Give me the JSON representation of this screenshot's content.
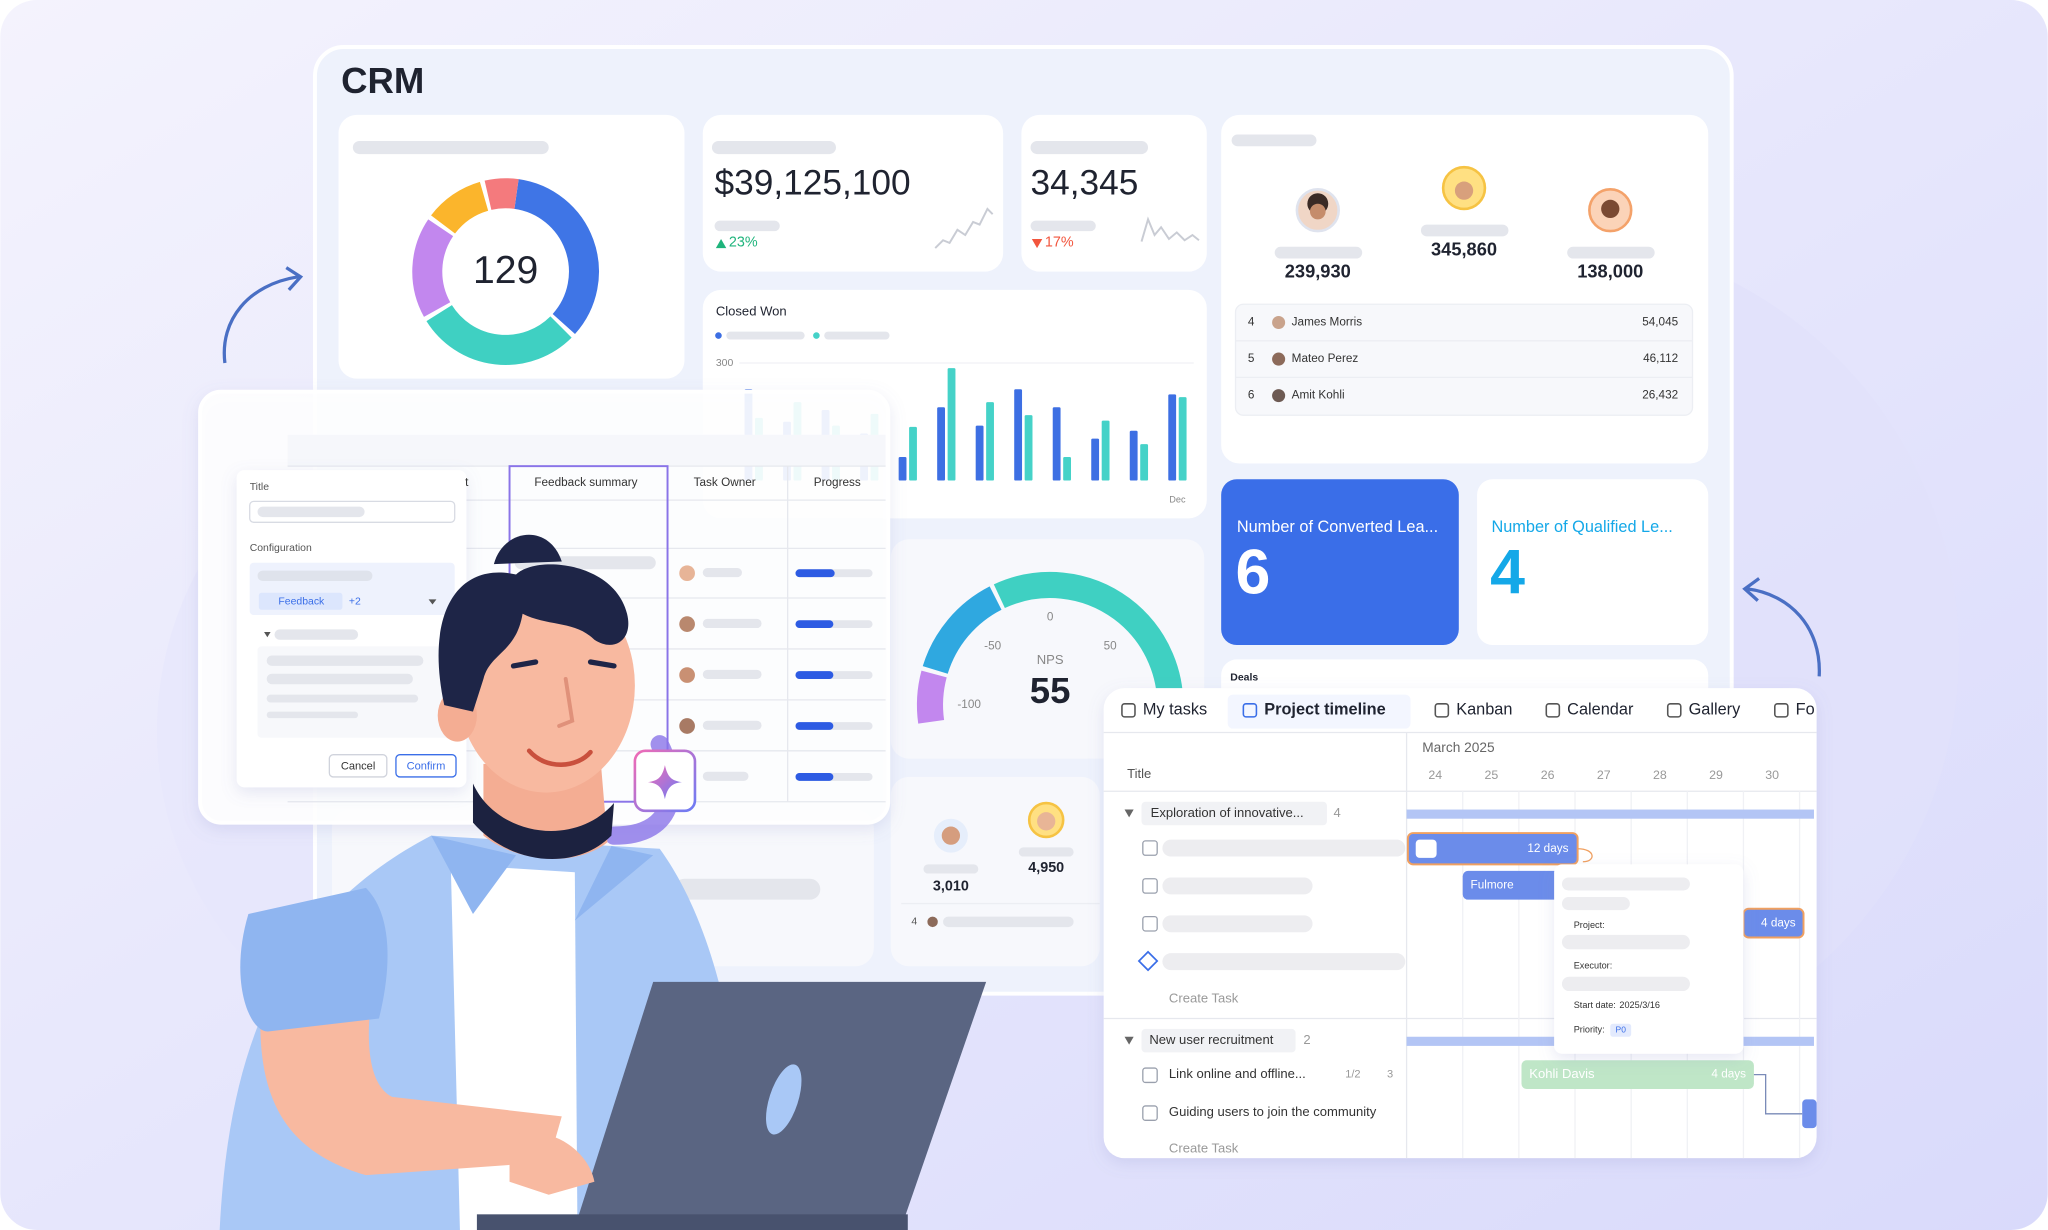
{
  "dashboard": {
    "title": "CRM",
    "donut_total": 129,
    "revenue": {
      "amount": "$39,125,100",
      "change": "23%"
    },
    "visits": {
      "amount": "34,345",
      "change": "17%"
    },
    "podium": [
      "239,930",
      "345,860",
      "138,000"
    ],
    "ranking": [
      {
        "rank": "4",
        "name": "James Morris",
        "value": "54,045"
      },
      {
        "rank": "5",
        "name": "Mateo Perez",
        "value": "46,112"
      },
      {
        "rank": "6",
        "name": "Amit Kohli",
        "value": "26,432"
      }
    ],
    "closed_won": {
      "title": "Closed Won",
      "categories": [
        null,
        null,
        null,
        null,
        null,
        null,
        null,
        null,
        null,
        null,
        null,
        "Dec"
      ],
      "ylim": [
        0,
        300
      ],
      "yticks": [
        300
      ],
      "series": [
        {
          "color": "#3d6fe3",
          "values": [
            233,
            150,
            180,
            120,
            60,
            187,
            140,
            233,
            187,
            107,
            127,
            220
          ]
        },
        {
          "color": "#45d2c8",
          "values": [
            160,
            200,
            140,
            170,
            137,
            287,
            200,
            167,
            60,
            153,
            93,
            213
          ]
        }
      ]
    },
    "converted": {
      "label": "Number of Converted Lea...",
      "value": 6
    },
    "qualified": {
      "label": "Number of Qualified Le...",
      "value": 4
    },
    "deals_title": "Deals",
    "nps": {
      "label": "NPS",
      "value": 55,
      "scale": [
        "-100",
        "-50",
        "0",
        "50"
      ]
    },
    "contacts": {
      "values": [
        "3,010",
        "4,950"
      ],
      "row_rank": "4"
    }
  },
  "form": {
    "title_label": "Title",
    "config_label": "Configuration",
    "tag": "Feedback",
    "more": "+2",
    "cancel": "Cancel",
    "confirm": "Confirm"
  },
  "table": {
    "cut_header": "t",
    "columns": [
      "Feedback summary",
      "Task Owner",
      "Progress"
    ]
  },
  "timeline": {
    "tabs": [
      "My tasks",
      "Project timeline",
      "Kanban",
      "Calendar",
      "Gallery",
      "Fo"
    ],
    "title_column": "Title",
    "month": "March 2025",
    "days": [
      "24",
      "25",
      "26",
      "27",
      "28",
      "29",
      "30"
    ],
    "groups": [
      {
        "name": "Exploration of innovative...",
        "count": "4",
        "create": "Create Task"
      },
      {
        "name": "New user recruitment",
        "count": "2",
        "tasks": [
          {
            "name": "Link online and offline...",
            "subtasks": "1/2",
            "comments": "3"
          },
          {
            "name": "Guiding users to join the community"
          }
        ],
        "create": "Create Task"
      }
    ],
    "bars": [
      {
        "label": "12 days"
      },
      {
        "label": "Fulmore"
      },
      {
        "label": "4 days"
      },
      {
        "label": "Kohli Davis",
        "duration": "4 days"
      }
    ],
    "popup": {
      "project": "Project:",
      "executor": "Executor:",
      "start_label": "Start date:",
      "start_date": "2025/3/16",
      "priority_label": "Priority:",
      "priority": "P0"
    }
  }
}
